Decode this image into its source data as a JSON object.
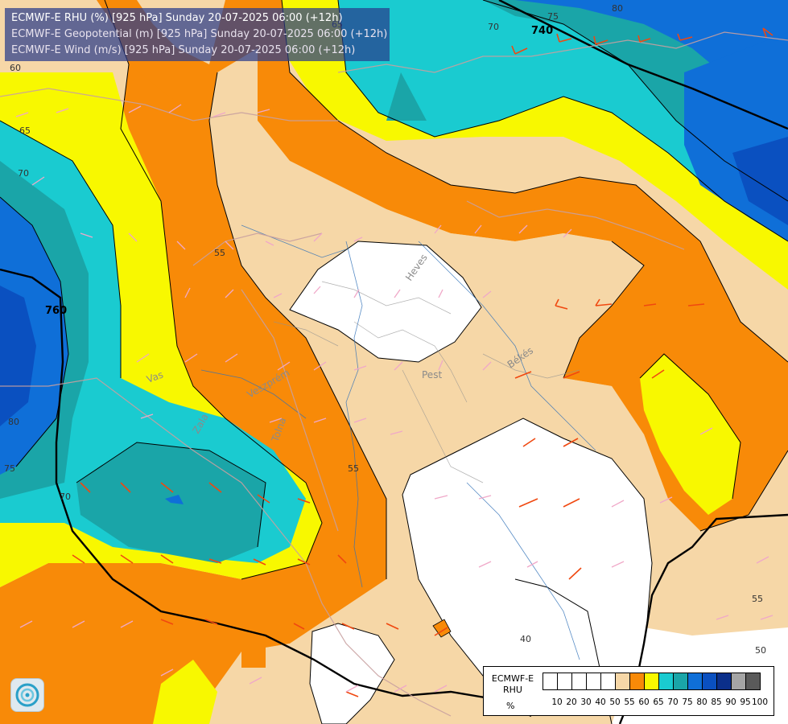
{
  "titles": {
    "line1": "ECMWF-E RHU (%) [925 hPa] Sunday 20-07-2025 06:00 (+12h)",
    "line2": "ECMWF-E Geopotential (m) [925 hPa] Sunday 20-07-2025 06:00 (+12h)",
    "line3": "ECMWF-E Wind (m/s) [925 hPa] Sunday 20-07-2025 06:00 (+12h)"
  },
  "legend": {
    "title_line1": "ECMWF-E",
    "title_line2": "RHU",
    "unit": "%",
    "colors": [
      "#ffffff",
      "#ffffff",
      "#ffffff",
      "#ffffff",
      "#ffffff",
      "#f6d7a7",
      "#f88a08",
      "#f8f800",
      "#1acbd0",
      "#1aa5a8",
      "#0f6fd8",
      "#0a50c0",
      "#0b2f8a",
      "#a5a5a5",
      "#5a5a5a"
    ],
    "ticks": [
      "10",
      "20",
      "30",
      "40",
      "50",
      "55",
      "60",
      "65",
      "70",
      "75",
      "80",
      "85",
      "90",
      "95",
      "100"
    ]
  },
  "contour_labels": {
    "rhu": [
      "75",
      "80",
      "70",
      "60",
      "65",
      "70",
      "55",
      "80",
      "75",
      "70",
      "55",
      "50",
      "55",
      "65",
      "40"
    ],
    "geopotential": [
      "740",
      "760"
    ]
  },
  "place_labels": [
    "Heves",
    "Pest",
    "Békés",
    "Vas",
    "Zala",
    "Veszprém",
    "Tolna"
  ],
  "colors": {
    "white": "#ffffff",
    "peach": "#f6d7a7",
    "orange": "#f88a08",
    "yellow": "#f8f800",
    "cyan": "#1acbd0",
    "teal": "#1aa5a8",
    "blue": "#0f6fd8",
    "darkblue": "#0a50c0",
    "navy": "#0b2f8a"
  }
}
